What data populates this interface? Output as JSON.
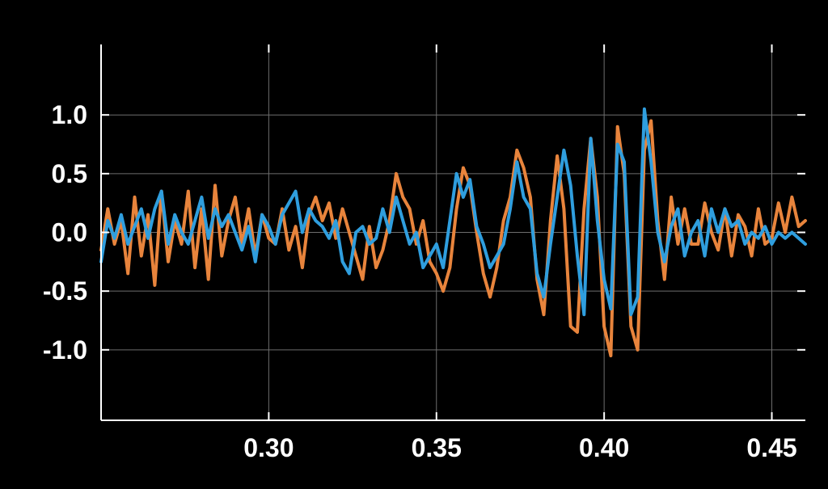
{
  "chart_data": {
    "type": "line",
    "title": "",
    "xlabel": "",
    "ylabel": "",
    "xlim": [
      0.25,
      0.46
    ],
    "ylim": [
      -1.6,
      1.6
    ],
    "grid": true,
    "colors": {
      "background": "#000000",
      "axis": "#ffffff",
      "grid": "#6e6e6e",
      "series_orange": "#e8843c",
      "series_blue": "#2f9ede"
    },
    "x_ticks": [
      {
        "value": 0.3,
        "label": "0.30"
      },
      {
        "value": 0.35,
        "label": "0.35"
      },
      {
        "value": 0.4,
        "label": "0.40"
      },
      {
        "value": 0.45,
        "label": "0.45"
      }
    ],
    "y_ticks": [
      {
        "value": 1.0,
        "label": "1.0"
      },
      {
        "value": 0.5,
        "label": "0.5"
      },
      {
        "value": 0.0,
        "label": "0.0"
      },
      {
        "value": -0.5,
        "label": "-0.5"
      },
      {
        "value": -1.0,
        "label": "-1.0"
      }
    ],
    "series": [
      {
        "color": "#e8843c",
        "x": [
          0.25,
          0.252,
          0.254,
          0.256,
          0.258,
          0.26,
          0.262,
          0.264,
          0.266,
          0.268,
          0.27,
          0.272,
          0.274,
          0.276,
          0.278,
          0.28,
          0.282,
          0.284,
          0.286,
          0.288,
          0.29,
          0.292,
          0.294,
          0.296,
          0.298,
          0.3,
          0.302,
          0.304,
          0.306,
          0.308,
          0.31,
          0.312,
          0.314,
          0.316,
          0.318,
          0.32,
          0.322,
          0.324,
          0.326,
          0.328,
          0.33,
          0.332,
          0.334,
          0.336,
          0.338,
          0.34,
          0.342,
          0.344,
          0.346,
          0.348,
          0.35,
          0.352,
          0.354,
          0.356,
          0.358,
          0.36,
          0.362,
          0.364,
          0.366,
          0.368,
          0.37,
          0.372,
          0.374,
          0.376,
          0.378,
          0.38,
          0.382,
          0.384,
          0.386,
          0.388,
          0.39,
          0.392,
          0.394,
          0.396,
          0.398,
          0.4,
          0.402,
          0.404,
          0.406,
          0.408,
          0.41,
          0.412,
          0.414,
          0.416,
          0.418,
          0.42,
          0.422,
          0.424,
          0.426,
          0.428,
          0.43,
          0.432,
          0.434,
          0.436,
          0.438,
          0.44,
          0.442,
          0.444,
          0.446,
          0.448,
          0.45,
          0.452,
          0.454,
          0.456,
          0.458,
          0.46
        ],
        "y": [
          -0.15,
          0.2,
          -0.1,
          0.1,
          -0.35,
          0.3,
          -0.2,
          0.15,
          -0.45,
          0.35,
          -0.25,
          0.1,
          -0.1,
          0.35,
          -0.3,
          0.2,
          -0.4,
          0.4,
          -0.2,
          0.1,
          0.3,
          -0.1,
          0.2,
          -0.2,
          0.15,
          -0.05,
          -0.1,
          0.2,
          -0.15,
          0.05,
          -0.3,
          0.15,
          0.3,
          0.1,
          0.25,
          -0.05,
          0.2,
          0.0,
          -0.2,
          -0.4,
          0.05,
          -0.3,
          -0.15,
          0.1,
          0.5,
          0.3,
          0.2,
          -0.1,
          0.1,
          -0.25,
          -0.35,
          -0.5,
          -0.3,
          0.2,
          0.55,
          0.4,
          0.0,
          -0.35,
          -0.55,
          -0.3,
          0.1,
          0.3,
          0.7,
          0.55,
          0.3,
          -0.4,
          -0.7,
          0.1,
          0.65,
          0.2,
          -0.8,
          -0.85,
          0.2,
          0.8,
          0.3,
          -0.8,
          -1.05,
          0.9,
          0.5,
          -0.8,
          -1.0,
          0.7,
          0.95,
          0.1,
          -0.4,
          0.3,
          -0.1,
          0.2,
          -0.1,
          -0.1,
          0.25,
          0.0,
          -0.15,
          0.2,
          -0.2,
          0.15,
          0.05,
          -0.2,
          0.2,
          -0.1,
          -0.05,
          0.25,
          0.0,
          0.3,
          0.05,
          0.1
        ]
      },
      {
        "color": "#2f9ede",
        "x": [
          0.25,
          0.252,
          0.254,
          0.256,
          0.258,
          0.26,
          0.262,
          0.264,
          0.266,
          0.268,
          0.27,
          0.272,
          0.274,
          0.276,
          0.278,
          0.28,
          0.282,
          0.284,
          0.286,
          0.288,
          0.29,
          0.292,
          0.294,
          0.296,
          0.298,
          0.3,
          0.302,
          0.304,
          0.306,
          0.308,
          0.31,
          0.312,
          0.314,
          0.316,
          0.318,
          0.32,
          0.322,
          0.324,
          0.326,
          0.328,
          0.33,
          0.332,
          0.334,
          0.336,
          0.338,
          0.34,
          0.342,
          0.344,
          0.346,
          0.348,
          0.35,
          0.352,
          0.354,
          0.356,
          0.358,
          0.36,
          0.362,
          0.364,
          0.366,
          0.368,
          0.37,
          0.372,
          0.374,
          0.376,
          0.378,
          0.38,
          0.382,
          0.384,
          0.386,
          0.388,
          0.39,
          0.392,
          0.394,
          0.396,
          0.398,
          0.4,
          0.402,
          0.404,
          0.406,
          0.408,
          0.41,
          0.412,
          0.414,
          0.416,
          0.418,
          0.42,
          0.422,
          0.424,
          0.426,
          0.428,
          0.43,
          0.432,
          0.434,
          0.436,
          0.438,
          0.44,
          0.442,
          0.444,
          0.446,
          0.448,
          0.45,
          0.452,
          0.454,
          0.456,
          0.458,
          0.46
        ],
        "y": [
          -0.25,
          0.1,
          -0.05,
          0.15,
          -0.1,
          0.05,
          0.2,
          -0.05,
          0.2,
          0.35,
          -0.1,
          0.15,
          0.0,
          -0.1,
          0.1,
          0.3,
          -0.05,
          0.2,
          0.05,
          0.15,
          0.0,
          -0.15,
          0.05,
          -0.25,
          0.15,
          0.05,
          -0.1,
          0.15,
          0.25,
          0.35,
          0.0,
          0.2,
          0.1,
          0.05,
          -0.05,
          0.1,
          -0.25,
          -0.35,
          0.0,
          0.05,
          -0.1,
          -0.05,
          0.2,
          0.0,
          0.3,
          0.1,
          -0.1,
          0.0,
          -0.3,
          -0.2,
          -0.1,
          -0.3,
          0.1,
          0.5,
          0.3,
          0.45,
          0.05,
          -0.1,
          -0.3,
          -0.2,
          -0.1,
          0.2,
          0.6,
          0.3,
          0.2,
          -0.35,
          -0.55,
          -0.1,
          0.3,
          0.7,
          0.4,
          -0.2,
          -0.7,
          0.8,
          0.1,
          -0.4,
          -0.65,
          0.75,
          0.6,
          -0.7,
          -0.55,
          1.05,
          0.6,
          0.0,
          -0.25,
          0.05,
          0.2,
          -0.2,
          0.0,
          0.1,
          -0.2,
          0.2,
          0.0,
          0.2,
          0.05,
          0.1,
          -0.1,
          0.0,
          -0.05,
          0.05,
          -0.1,
          0.0,
          -0.05,
          0.0,
          -0.05,
          -0.1
        ]
      }
    ]
  }
}
